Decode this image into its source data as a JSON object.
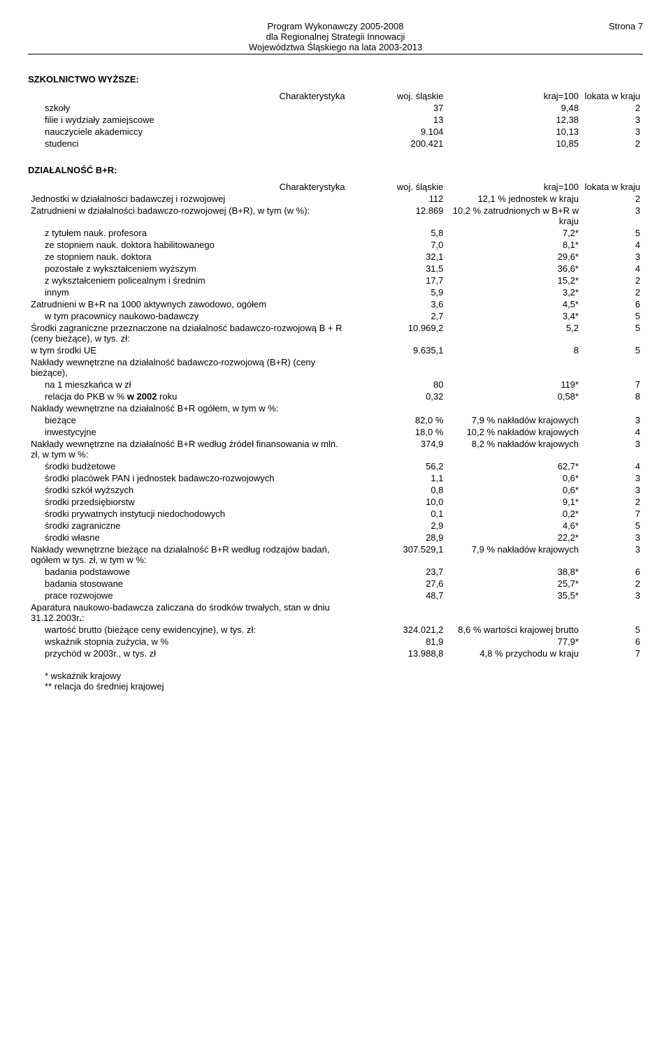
{
  "header": {
    "line1": "Program Wykonawczy 2005-2008",
    "line2": "dla Regionalnej Strategii Innowacji",
    "line3": "Województwa Śląskiego na lata 2003-2013",
    "page": "Strona 7"
  },
  "table1": {
    "title": "SZKOLNICTWO WYŻSZE:",
    "headers": {
      "c1": "Charakterystyka",
      "c2": "woj. śląskie",
      "c3": "kraj=100",
      "c4": "lokata w kraju"
    },
    "rows": [
      {
        "label": "szkoły",
        "v1": "37",
        "v2": "9,48",
        "v3": "2",
        "indent": 1
      },
      {
        "label": "filie i wydziały zamiejscowe",
        "v1": "13",
        "v2": "12,38",
        "v3": "3",
        "indent": 1
      },
      {
        "label": "nauczyciele akademiccy",
        "v1": "9.104",
        "v2": "10,13",
        "v3": "3",
        "indent": 1
      },
      {
        "label": "studenci",
        "v1": "200.421",
        "v2": "10,85",
        "v3": "2",
        "indent": 1
      }
    ]
  },
  "table2": {
    "title": "DZIAŁALNOŚĆ B+R:",
    "headers": {
      "c1": "Charakterystyka",
      "c2": "woj. śląskie",
      "c3": "kraj=100",
      "c4": "lokata w kraju"
    },
    "rows": [
      {
        "label": "Jednostki w działalności badawczej i rozwojowej",
        "v1": "112",
        "v2": "12,1 % jednostek w kraju",
        "v3": "2"
      },
      {
        "label": "Zatrudnieni w działalności badawczo-rozwojowej (B+R), w tym (w %):",
        "v1": "12.869",
        "v2": "10,2 % zatrudnionych w B+R w kraju",
        "v3": "3"
      },
      {
        "label": "z tytułem nauk. profesora",
        "v1": "5,8",
        "v2": "7,2*",
        "v3": "5",
        "indent": 1
      },
      {
        "label": "ze stopniem nauk. doktora habilitowanego",
        "v1": "7,0",
        "v2": "8,1*",
        "v3": "4",
        "indent": 1
      },
      {
        "label": "ze stopniem nauk. doktora",
        "v1": "32,1",
        "v2": "29,6*",
        "v3": "3",
        "indent": 1
      },
      {
        "label": "pozostałe z wykształceniem wyższym",
        "v1": "31,5",
        "v2": "36,6*",
        "v3": "4",
        "indent": 1
      },
      {
        "label": "z wykształceniem policealnym i średnim",
        "v1": "17,7",
        "v2": "15,2*",
        "v3": "2",
        "indent": 1
      },
      {
        "label": "innym",
        "v1": "5,9",
        "v2": "3,2*",
        "v3": "2",
        "indent": 1
      },
      {
        "label": "Zatrudnieni w B+R na 1000 aktywnych zawodowo, ogółem",
        "v1": "3,6",
        "v2": "4,5*",
        "v3": "6"
      },
      {
        "label": "w tym pracownicy naukowo-badawczy",
        "v1": "2,7",
        "v2": "3,4*",
        "v3": "5",
        "indent": 1
      },
      {
        "label": "Środki zagraniczne przeznaczone na działalność badawczo-rozwojową B + R (ceny bieżące), w tys. zł:",
        "v1": "10.969,2",
        "v2": "5,2",
        "v3": "5"
      },
      {
        "label": "w tym środki UE",
        "v1": "9.635,1",
        "v2": "8",
        "v3": "5"
      },
      {
        "label": "Nakłady wewnętrzne na działalność badawczo-rozwojową (B+R) (ceny bieżące),",
        "v1": "",
        "v2": "",
        "v3": ""
      },
      {
        "label": "na 1 mieszkańca w zł",
        "v1": "80",
        "v2": "119*",
        "v3": "7",
        "indent": 1
      },
      {
        "label": "relacja do PKB w % <b>w 2002</b> roku",
        "v1": "0,32",
        "v2": "0,58*",
        "v3": "8",
        "indent": 1,
        "html": true
      },
      {
        "label": "Nakłady wewnętrzne na działalność B+R ogółem, w tym w %:",
        "v1": "",
        "v2": "",
        "v3": ""
      },
      {
        "label": "bieżące",
        "v1": "82,0 %",
        "v2": "7,9 % nakładów krajowych",
        "v3": "3",
        "indent": 1
      },
      {
        "label": "inwestycyjne",
        "v1": "18,0 %",
        "v2": "10,2 % nakładów krajowych",
        "v3": "4",
        "indent": 1
      },
      {
        "label": "Nakłady wewnętrzne na działalność B+R według źródeł finansowania w mln. zł, w tym w %:",
        "v1": "374,9",
        "v2": "8,2 % nakładów krajowych",
        "v3": "3"
      },
      {
        "label": "środki budżetowe",
        "v1": "56,2",
        "v2": "62,7*",
        "v3": "4",
        "indent": 1
      },
      {
        "label": "środki placówek PAN i jednostek badawczo-rozwojowych",
        "v1": "1,1",
        "v2": "0,6*",
        "v3": "3",
        "indent": 1
      },
      {
        "label": "środki szkół wyższych",
        "v1": "0,8",
        "v2": "0,6*",
        "v3": "3",
        "indent": 1
      },
      {
        "label": "środki przedsiębiorstw",
        "v1": "10,0",
        "v2": "9,1*",
        "v3": "2",
        "indent": 1
      },
      {
        "label": "środki prywatnych instytucji niedochodowych",
        "v1": "0,1",
        "v2": "0,2*",
        "v3": "7",
        "indent": 1
      },
      {
        "label": "środki zagraniczne",
        "v1": "2,9",
        "v2": "4,6*",
        "v3": "5",
        "indent": 1
      },
      {
        "label": "środki własne",
        "v1": "28,9",
        "v2": "22,2*",
        "v3": "3",
        "indent": 1
      },
      {
        "label": "Nakłady wewnętrzne bieżące na działalność B+R według rodzajów badań, ogółem w tys. zł, w tym w %:",
        "v1": "307.529,1",
        "v2": "7,9 % nakładów krajowych",
        "v3": "3"
      },
      {
        "label": "badania podstawowe",
        "v1": "23,7",
        "v2": "38,8*",
        "v3": "6",
        "indent": 1
      },
      {
        "label": "badania stosowane",
        "v1": "27,6",
        "v2": "25,7*",
        "v3": "2",
        "indent": 1
      },
      {
        "label": "prace rozwojowe",
        "v1": "48,7",
        "v2": "35,5*",
        "v3": "3",
        "indent": 1
      },
      {
        "label": "Aparatura naukowo-badawcza zaliczana do środków trwałych, stan w dniu 31.12.2003r<b>.</b>:",
        "v1": "",
        "v2": "",
        "v3": "",
        "html": true
      },
      {
        "label": "wartość brutto (bieżące ceny ewidencyjne), w tys. zł:",
        "v1": "324.021,2",
        "v2": "8,6 % wartości krajowej brutto",
        "v3": "5",
        "indent": 1
      },
      {
        "label": "wskaźnik stopnia zużycia, w %",
        "v1": "81,9",
        "v2": "77,9*",
        "v3": "6",
        "indent": 1
      },
      {
        "label": "przychód w 2003r., w tys. zł",
        "v1": "13.988,8",
        "v2": "4,8 % przychodu w kraju",
        "v3": "7",
        "indent": 1
      }
    ]
  },
  "footnotes": {
    "f1": "* wskaźnik krajowy",
    "f2": "** relacja do średniej krajowej"
  }
}
